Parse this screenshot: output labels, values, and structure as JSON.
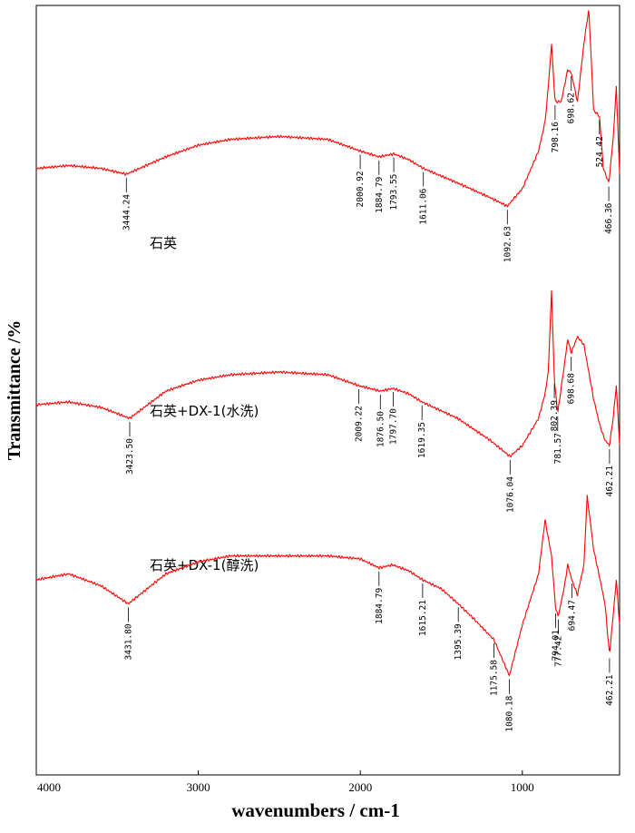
{
  "chart_data": {
    "type": "line",
    "xlabel": "wavenumbers / cm-1",
    "ylabel": "Transmittance /%",
    "xlim": [
      4000,
      400
    ],
    "x_reversed": true,
    "x_ticks": [
      4000,
      3000,
      2000,
      1000
    ],
    "grid": false,
    "legend": "none",
    "line_color": "#ff0000",
    "series": [
      {
        "name": "石英",
        "x": [
          4000,
          3800,
          3600,
          3444.24,
          3200,
          3000,
          2800,
          2500,
          2200,
          2000.92,
          1884.79,
          1793.55,
          1700,
          1611.06,
          1400,
          1200,
          1092.63,
          1000,
          900,
          860,
          840,
          820,
          798.16,
          760,
          720,
          698.62,
          660,
          620,
          590,
          560,
          524.42,
          500,
          466.36,
          440,
          420,
          400
        ],
        "y": [
          42,
          43,
          42,
          40,
          46,
          50,
          52,
          53,
          52,
          48,
          46,
          47,
          45,
          42,
          37,
          32,
          29,
          35,
          48,
          58,
          70,
          85,
          65,
          65,
          76,
          75,
          65,
          85,
          97,
          62,
          60,
          42,
          37,
          52,
          70,
          40
        ]
      },
      {
        "name": "石英+DX-1(水洗)",
        "x": [
          4000,
          3800,
          3600,
          3423.5,
          3200,
          3000,
          2800,
          2500,
          2200,
          2009.22,
          1876.5,
          1797.7,
          1700,
          1619.35,
          1400,
          1200,
          1076.04,
          1000,
          900,
          860,
          840,
          820,
          802.39,
          781.57,
          740,
          720,
          698.68,
          660,
          620,
          590,
          560,
          520,
          490,
          462.21,
          440,
          420,
          400
        ],
        "y": [
          23,
          24,
          22,
          18,
          28,
          32,
          34,
          35,
          34,
          30,
          28,
          29,
          27,
          24,
          18,
          10,
          4,
          8,
          18,
          27,
          35,
          65,
          32,
          20,
          38,
          47,
          42,
          48,
          45,
          35,
          25,
          15,
          10,
          8,
          18,
          30,
          8
        ]
      },
      {
        "name": "石英+DX-1(醇洗)",
        "x": [
          4000,
          3800,
          3600,
          3431.8,
          3200,
          3000,
          2800,
          2500,
          2200,
          2000,
          1884.79,
          1800,
          1700,
          1615.21,
          1500,
          1395.39,
          1300,
          1175.58,
          1080.18,
          1000,
          900,
          860,
          820,
          794.01,
          777.42,
          740,
          720,
          694.47,
          660,
          620,
          600,
          560,
          520,
          490,
          462.21,
          440,
          420,
          400
        ],
        "y": [
          20,
          22,
          18,
          12,
          22,
          26,
          28,
          28,
          28,
          27,
          24,
          25,
          23,
          20,
          17,
          12,
          7,
          0,
          -12,
          5,
          22,
          40,
          28,
          10,
          8,
          18,
          25,
          20,
          15,
          25,
          48,
          30,
          20,
          12,
          -5,
          8,
          20,
          5
        ]
      }
    ],
    "annotations": [
      {
        "series": 0,
        "label": "3444.24",
        "x": 3444.24
      },
      {
        "series": 0,
        "label": "2000.92",
        "x": 2000.92
      },
      {
        "series": 0,
        "label": "1884.79",
        "x": 1884.79
      },
      {
        "series": 0,
        "label": "1793.55",
        "x": 1793.55
      },
      {
        "series": 0,
        "label": "1611.06",
        "x": 1611.06
      },
      {
        "series": 0,
        "label": "1092.63",
        "x": 1092.63
      },
      {
        "series": 0,
        "label": "798.16",
        "x": 798.16
      },
      {
        "series": 0,
        "label": "698.62",
        "x": 698.62
      },
      {
        "series": 0,
        "label": "524.42",
        "x": 524.42
      },
      {
        "series": 0,
        "label": "466.36",
        "x": 466.36
      },
      {
        "series": 1,
        "label": "3423.50",
        "x": 3423.5
      },
      {
        "series": 1,
        "label": "2009.22",
        "x": 2009.22
      },
      {
        "series": 1,
        "label": "1876.50",
        "x": 1876.5
      },
      {
        "series": 1,
        "label": "1797.70",
        "x": 1797.7
      },
      {
        "series": 1,
        "label": "1619.35",
        "x": 1619.35
      },
      {
        "series": 1,
        "label": "1076.04",
        "x": 1076.04
      },
      {
        "series": 1,
        "label": "802.39",
        "x": 802.39
      },
      {
        "series": 1,
        "label": "781.57",
        "x": 781.57
      },
      {
        "series": 1,
        "label": "698.68",
        "x": 698.68
      },
      {
        "series": 1,
        "label": "462.21",
        "x": 462.21
      },
      {
        "series": 2,
        "label": "3431.80",
        "x": 3431.8
      },
      {
        "series": 2,
        "label": "1884.79",
        "x": 1884.79
      },
      {
        "series": 2,
        "label": "1615.21",
        "x": 1615.21
      },
      {
        "series": 2,
        "label": "1395.39",
        "x": 1395.39
      },
      {
        "series": 2,
        "label": "1175.58",
        "x": 1175.58
      },
      {
        "series": 2,
        "label": "1080.18",
        "x": 1080.18
      },
      {
        "series": 2,
        "label": "794.01",
        "x": 794.01
      },
      {
        "series": 2,
        "label": "777.42",
        "x": 777.42
      },
      {
        "series": 2,
        "label": "694.47",
        "x": 694.47
      },
      {
        "series": 2,
        "label": "462.21",
        "x": 462.21
      }
    ]
  }
}
